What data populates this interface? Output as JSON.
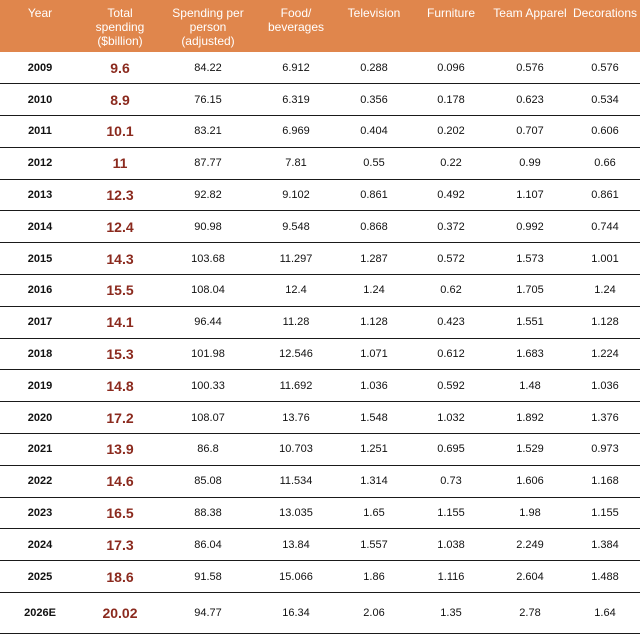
{
  "table": {
    "headers": [
      "Year",
      "Total spending ($billion)",
      "Spending per person (adjusted)",
      "Food/ beverages",
      "Television",
      "Furniture",
      "Team Apparel",
      "Decorations"
    ],
    "rows": [
      [
        "2009",
        "9.6",
        "84.22",
        "6.912",
        "0.288",
        "0.096",
        "0.576",
        "0.576"
      ],
      [
        "2010",
        "8.9",
        "76.15",
        "6.319",
        "0.356",
        "0.178",
        "0.623",
        "0.534"
      ],
      [
        "2011",
        "10.1",
        "83.21",
        "6.969",
        "0.404",
        "0.202",
        "0.707",
        "0.606"
      ],
      [
        "2012",
        "11",
        "87.77",
        "7.81",
        "0.55",
        "0.22",
        "0.99",
        "0.66"
      ],
      [
        "2013",
        "12.3",
        "92.82",
        "9.102",
        "0.861",
        "0.492",
        "1.107",
        "0.861"
      ],
      [
        "2014",
        "12.4",
        "90.98",
        "9.548",
        "0.868",
        "0.372",
        "0.992",
        "0.744"
      ],
      [
        "2015",
        "14.3",
        "103.68",
        "11.297",
        "1.287",
        "0.572",
        "1.573",
        "1.001"
      ],
      [
        "2016",
        "15.5",
        "108.04",
        "12.4",
        "1.24",
        "0.62",
        "1.705",
        "1.24"
      ],
      [
        "2017",
        "14.1",
        "96.44",
        "11.28",
        "1.128",
        "0.423",
        "1.551",
        "1.128"
      ],
      [
        "2018",
        "15.3",
        "101.98",
        "12.546",
        "1.071",
        "0.612",
        "1.683",
        "1.224"
      ],
      [
        "2019",
        "14.8",
        "100.33",
        "11.692",
        "1.036",
        "0.592",
        "1.48",
        "1.036"
      ],
      [
        "2020",
        "17.2",
        "108.07",
        "13.76",
        "1.548",
        "1.032",
        "1.892",
        "1.376"
      ],
      [
        "2021",
        "13.9",
        "86.8",
        "10.703",
        "1.251",
        "0.695",
        "1.529",
        "0.973"
      ],
      [
        "2022",
        "14.6",
        "85.08",
        "11.534",
        "1.314",
        "0.73",
        "1.606",
        "1.168"
      ],
      [
        "2023",
        "16.5",
        "88.38",
        "13.035",
        "1.65",
        "1.155",
        "1.98",
        "1.155"
      ],
      [
        "2024",
        "17.3",
        "86.04",
        "13.84",
        "1.557",
        "1.038",
        "2.249",
        "1.384"
      ],
      [
        "2025",
        "18.6",
        "91.58",
        "15.066",
        "1.86",
        "1.116",
        "2.604",
        "1.488"
      ],
      [
        "2026E",
        "20.02",
        "94.77",
        "16.34",
        "2.06",
        "1.35",
        "2.78",
        "1.64"
      ]
    ]
  },
  "colors": {
    "header_background": "#e0864c",
    "header_text": "#ffffff",
    "total_text": "#8b2a1e",
    "row_border": "#1a1a1a"
  }
}
